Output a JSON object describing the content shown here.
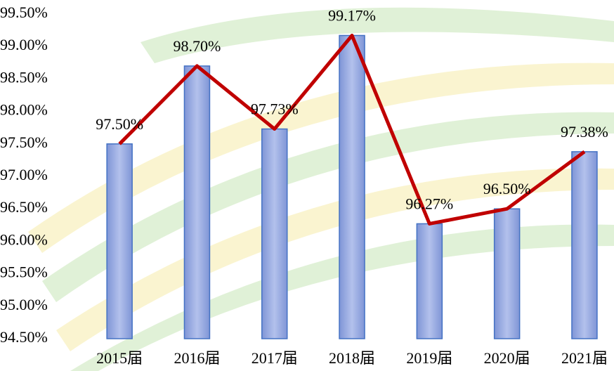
{
  "chart_data": {
    "type": "bar_line",
    "categories": [
      "2015届",
      "2016届",
      "2017届",
      "2018届",
      "2019届",
      "2020届",
      "2021届"
    ],
    "values": [
      97.5,
      98.7,
      97.73,
      99.17,
      96.27,
      96.5,
      97.38
    ],
    "value_labels": [
      "97.50%",
      "98.70%",
      "97.73%",
      "99.17%",
      "96.27%",
      "96.50%",
      "97.38%"
    ],
    "color": "#8fa3de",
    "line_color": "#c00000",
    "ylim": [
      94.5,
      99.5
    ],
    "yticks": [
      {
        "value": 94.5,
        "label": "94.50%"
      },
      {
        "value": 95.0,
        "label": "95.00%"
      },
      {
        "value": 95.5,
        "label": "95.50%"
      },
      {
        "value": 96.0,
        "label": "96.00%"
      },
      {
        "value": 96.5,
        "label": "96.50%"
      },
      {
        "value": 97.0,
        "label": "97.00%"
      },
      {
        "value": 97.5,
        "label": "97.50%"
      },
      {
        "value": 98.0,
        "label": "98.00%"
      },
      {
        "value": 98.5,
        "label": "98.50%"
      },
      {
        "value": 99.0,
        "label": "99.00%"
      },
      {
        "value": 99.5,
        "label": "99.50%"
      }
    ],
    "grid": false
  }
}
